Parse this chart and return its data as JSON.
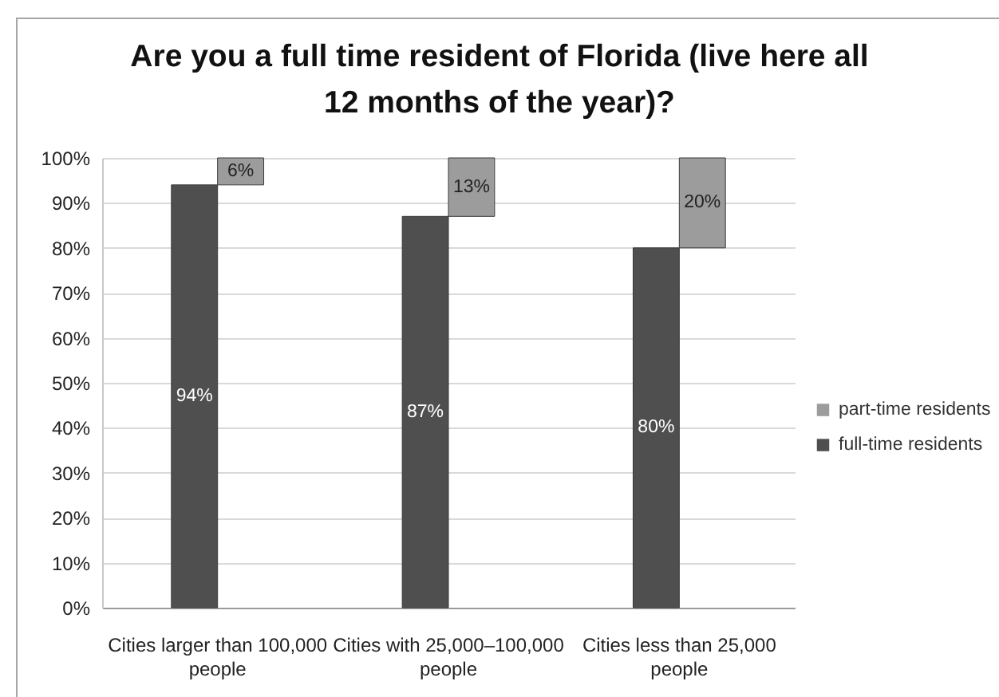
{
  "chart_data": {
    "type": "bar",
    "title": "Are you a full time resident of Florida (live here all 12 months of the year)?",
    "categories": [
      "Cities larger than 100,000 people",
      "Cities with 25,000–100,000 people",
      "Cities less than 25,000 people"
    ],
    "stacked": true,
    "series": [
      {
        "name": "full-time residents",
        "color": "#4f4f4f",
        "values": [
          94,
          87,
          80
        ],
        "value_labels": [
          "94%",
          "87%",
          "80%"
        ]
      },
      {
        "name": "part-time residents",
        "color": "#9c9c9c",
        "values": [
          6,
          13,
          20
        ],
        "value_labels": [
          "6%",
          "13%",
          "20%"
        ]
      }
    ],
    "ylim": [
      0,
      100
    ],
    "yticks": [
      {
        "value": 0,
        "label": "0%"
      },
      {
        "value": 10,
        "label": "10%"
      },
      {
        "value": 20,
        "label": "20%"
      },
      {
        "value": 30,
        "label": "30%"
      },
      {
        "value": 40,
        "label": "40%"
      },
      {
        "value": 50,
        "label": "50%"
      },
      {
        "value": 60,
        "label": "60%"
      },
      {
        "value": 70,
        "label": "70%"
      },
      {
        "value": 80,
        "label": "80%"
      },
      {
        "value": 90,
        "label": "90%"
      },
      {
        "value": 100,
        "label": "100%"
      }
    ],
    "grid": "y",
    "legend": "right"
  }
}
